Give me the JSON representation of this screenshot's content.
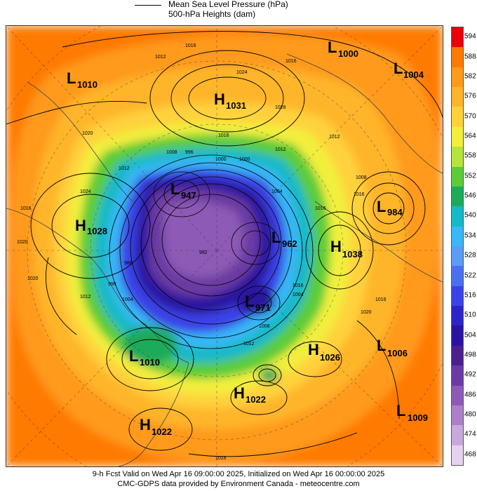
{
  "legend": {
    "mslp_label": "Mean Sea Level Pressure (hPa)",
    "heights_label": "500-hPa Heights (dam)"
  },
  "colorbar": {
    "values": [
      "594",
      "588",
      "582",
      "576",
      "570",
      "564",
      "558",
      "552",
      "546",
      "540",
      "534",
      "528",
      "522",
      "516",
      "510",
      "504",
      "498",
      "492",
      "486",
      "480",
      "474",
      "468"
    ],
    "colors": [
      "#e8000b",
      "#ff7a05",
      "#ff9a1c",
      "#ffb52b",
      "#ffd23c",
      "#f2ef3c",
      "#b7e43c",
      "#5ccc3b",
      "#1dab5a",
      "#15b9c7",
      "#39b7f6",
      "#5b9cf5",
      "#4a70f0",
      "#3a43e6",
      "#2d24c8",
      "#2a13a0",
      "#4c1f8e",
      "#6b3aa3",
      "#8d5ab5",
      "#ab80c9",
      "#c9a8dc",
      "#e7d2ee"
    ]
  },
  "systems": [
    {
      "letter": "L",
      "value": "1000"
    },
    {
      "letter": "L",
      "value": "1004"
    },
    {
      "letter": "L",
      "value": "1010"
    },
    {
      "letter": "H",
      "value": "1031"
    },
    {
      "letter": "L",
      "value": "984"
    },
    {
      "letter": "H",
      "value": "1028"
    },
    {
      "letter": "L",
      "value": "962"
    },
    {
      "letter": "H",
      "value": "1038"
    },
    {
      "letter": "L",
      "value": "947"
    },
    {
      "letter": "L",
      "value": "971"
    },
    {
      "letter": "H",
      "value": "1026"
    },
    {
      "letter": "L",
      "value": "1006"
    },
    {
      "letter": "L",
      "value": "1010"
    },
    {
      "letter": "H",
      "value": "1022"
    },
    {
      "letter": "L",
      "value": "1009"
    },
    {
      "letter": "H",
      "value": "1022"
    }
  ],
  "isobar_labels": [
    "1012",
    "1016",
    "1024",
    "1028",
    "1016",
    "1020",
    "1012",
    "1024",
    "1016",
    "1020",
    "1020",
    "1016",
    "1012",
    "1008",
    "1000",
    "996",
    "1004",
    "1000",
    "992",
    "988",
    "996",
    "1004",
    "1008",
    "1012",
    "1016",
    "1020",
    "1016",
    "1004",
    "1012",
    "1016",
    "1008",
    "1016",
    "1012",
    "1016"
  ],
  "footer": {
    "line1": "9-h Fcst Valid on Wed Apr 16 09:00:00 2025, Initialized on Wed Apr 16 00:00:00 2025",
    "line2": "CMC-GDPS data provided by Environment Canada - meteocentre.com"
  }
}
